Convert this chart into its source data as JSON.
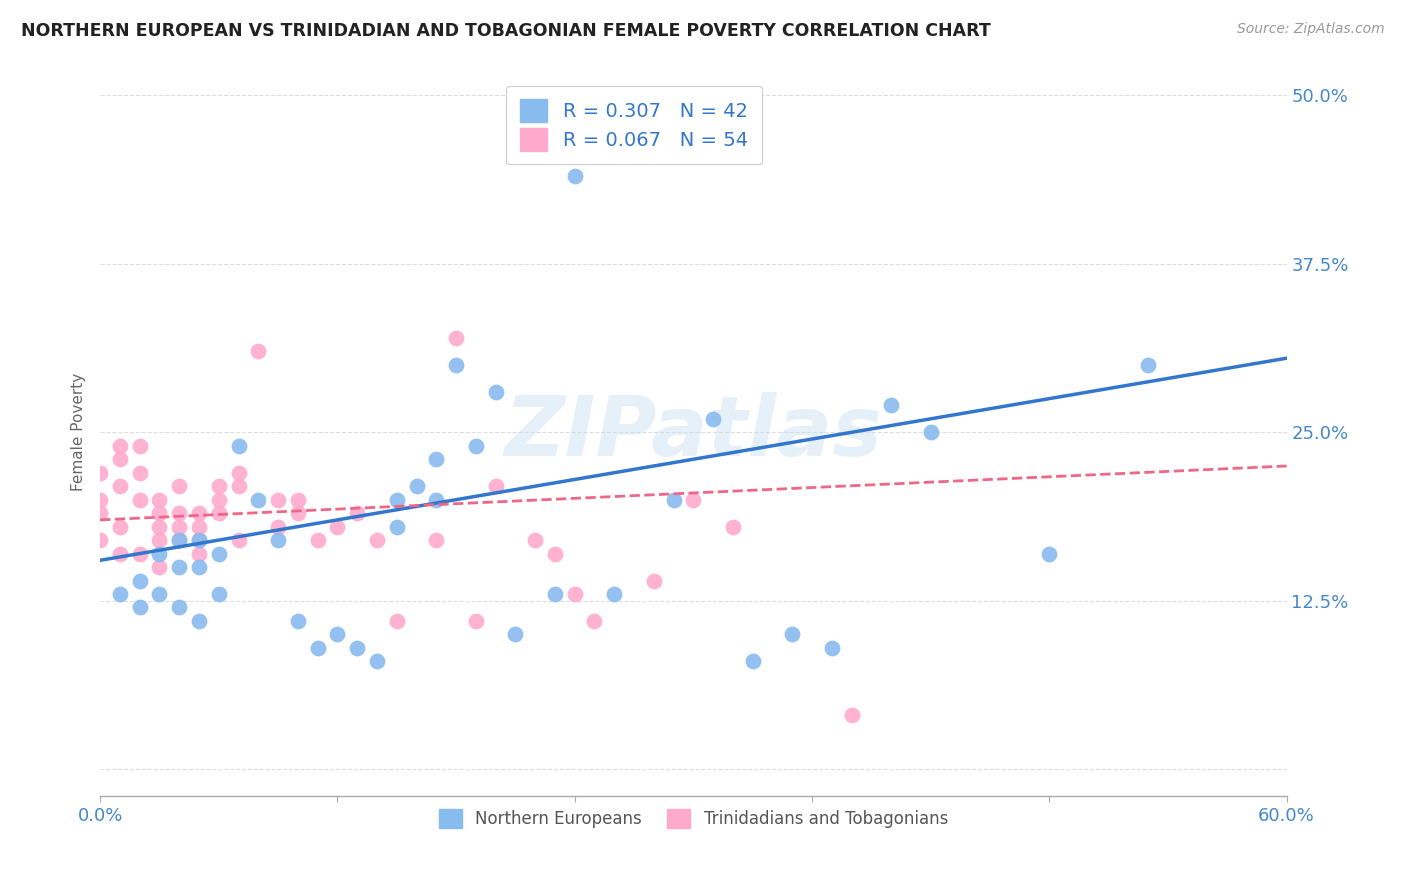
{
  "title": "NORTHERN EUROPEAN VS TRINIDADIAN AND TOBAGONIAN FEMALE POVERTY CORRELATION CHART",
  "source": "Source: ZipAtlas.com",
  "ylabel": "Female Poverty",
  "yticks": [
    0.0,
    0.125,
    0.25,
    0.375,
    0.5
  ],
  "ytick_labels": [
    "",
    "12.5%",
    "25.0%",
    "37.5%",
    "50.0%"
  ],
  "xlim": [
    0.0,
    0.6
  ],
  "ylim": [
    -0.02,
    0.52
  ],
  "blue_color": "#88bbee",
  "pink_color": "#ffaacc",
  "blue_line_color": "#3377cc",
  "pink_line_color": "#ee6688",
  "legend_text_color": "#3377cc",
  "watermark": "ZIPatlas",
  "blue_scatter_x": [
    0.01,
    0.02,
    0.02,
    0.03,
    0.03,
    0.04,
    0.04,
    0.04,
    0.05,
    0.05,
    0.05,
    0.06,
    0.06,
    0.07,
    0.08,
    0.09,
    0.1,
    0.11,
    0.12,
    0.13,
    0.14,
    0.15,
    0.15,
    0.16,
    0.17,
    0.17,
    0.18,
    0.19,
    0.2,
    0.21,
    0.23,
    0.24,
    0.26,
    0.29,
    0.31,
    0.33,
    0.35,
    0.37,
    0.4,
    0.42,
    0.48,
    0.53
  ],
  "blue_scatter_y": [
    0.13,
    0.14,
    0.12,
    0.16,
    0.13,
    0.17,
    0.15,
    0.12,
    0.17,
    0.15,
    0.11,
    0.16,
    0.13,
    0.24,
    0.2,
    0.17,
    0.11,
    0.09,
    0.1,
    0.09,
    0.08,
    0.2,
    0.18,
    0.21,
    0.23,
    0.2,
    0.3,
    0.24,
    0.28,
    0.1,
    0.13,
    0.44,
    0.13,
    0.2,
    0.26,
    0.08,
    0.1,
    0.09,
    0.27,
    0.25,
    0.16,
    0.3
  ],
  "pink_scatter_x": [
    0.0,
    0.0,
    0.0,
    0.0,
    0.01,
    0.01,
    0.01,
    0.01,
    0.01,
    0.02,
    0.02,
    0.02,
    0.02,
    0.03,
    0.03,
    0.03,
    0.03,
    0.03,
    0.04,
    0.04,
    0.04,
    0.05,
    0.05,
    0.05,
    0.05,
    0.06,
    0.06,
    0.06,
    0.07,
    0.07,
    0.07,
    0.08,
    0.09,
    0.09,
    0.1,
    0.1,
    0.11,
    0.12,
    0.13,
    0.14,
    0.15,
    0.17,
    0.18,
    0.19,
    0.2,
    0.22,
    0.23,
    0.24,
    0.25,
    0.28,
    0.3,
    0.32,
    0.38,
    0.04
  ],
  "pink_scatter_y": [
    0.19,
    0.17,
    0.2,
    0.22,
    0.24,
    0.21,
    0.23,
    0.18,
    0.16,
    0.24,
    0.22,
    0.2,
    0.16,
    0.18,
    0.2,
    0.17,
    0.19,
    0.15,
    0.21,
    0.19,
    0.18,
    0.17,
    0.19,
    0.18,
    0.16,
    0.21,
    0.19,
    0.2,
    0.21,
    0.17,
    0.22,
    0.31,
    0.2,
    0.18,
    0.2,
    0.19,
    0.17,
    0.18,
    0.19,
    0.17,
    0.11,
    0.17,
    0.32,
    0.11,
    0.21,
    0.17,
    0.16,
    0.13,
    0.11,
    0.14,
    0.2,
    0.18,
    0.04,
    0.17
  ],
  "blue_line_x0": 0.0,
  "blue_line_y0": 0.155,
  "blue_line_x1": 0.6,
  "blue_line_y1": 0.305,
  "pink_line_x0": 0.0,
  "pink_line_y0": 0.185,
  "pink_line_x1": 0.6,
  "pink_line_y1": 0.225
}
